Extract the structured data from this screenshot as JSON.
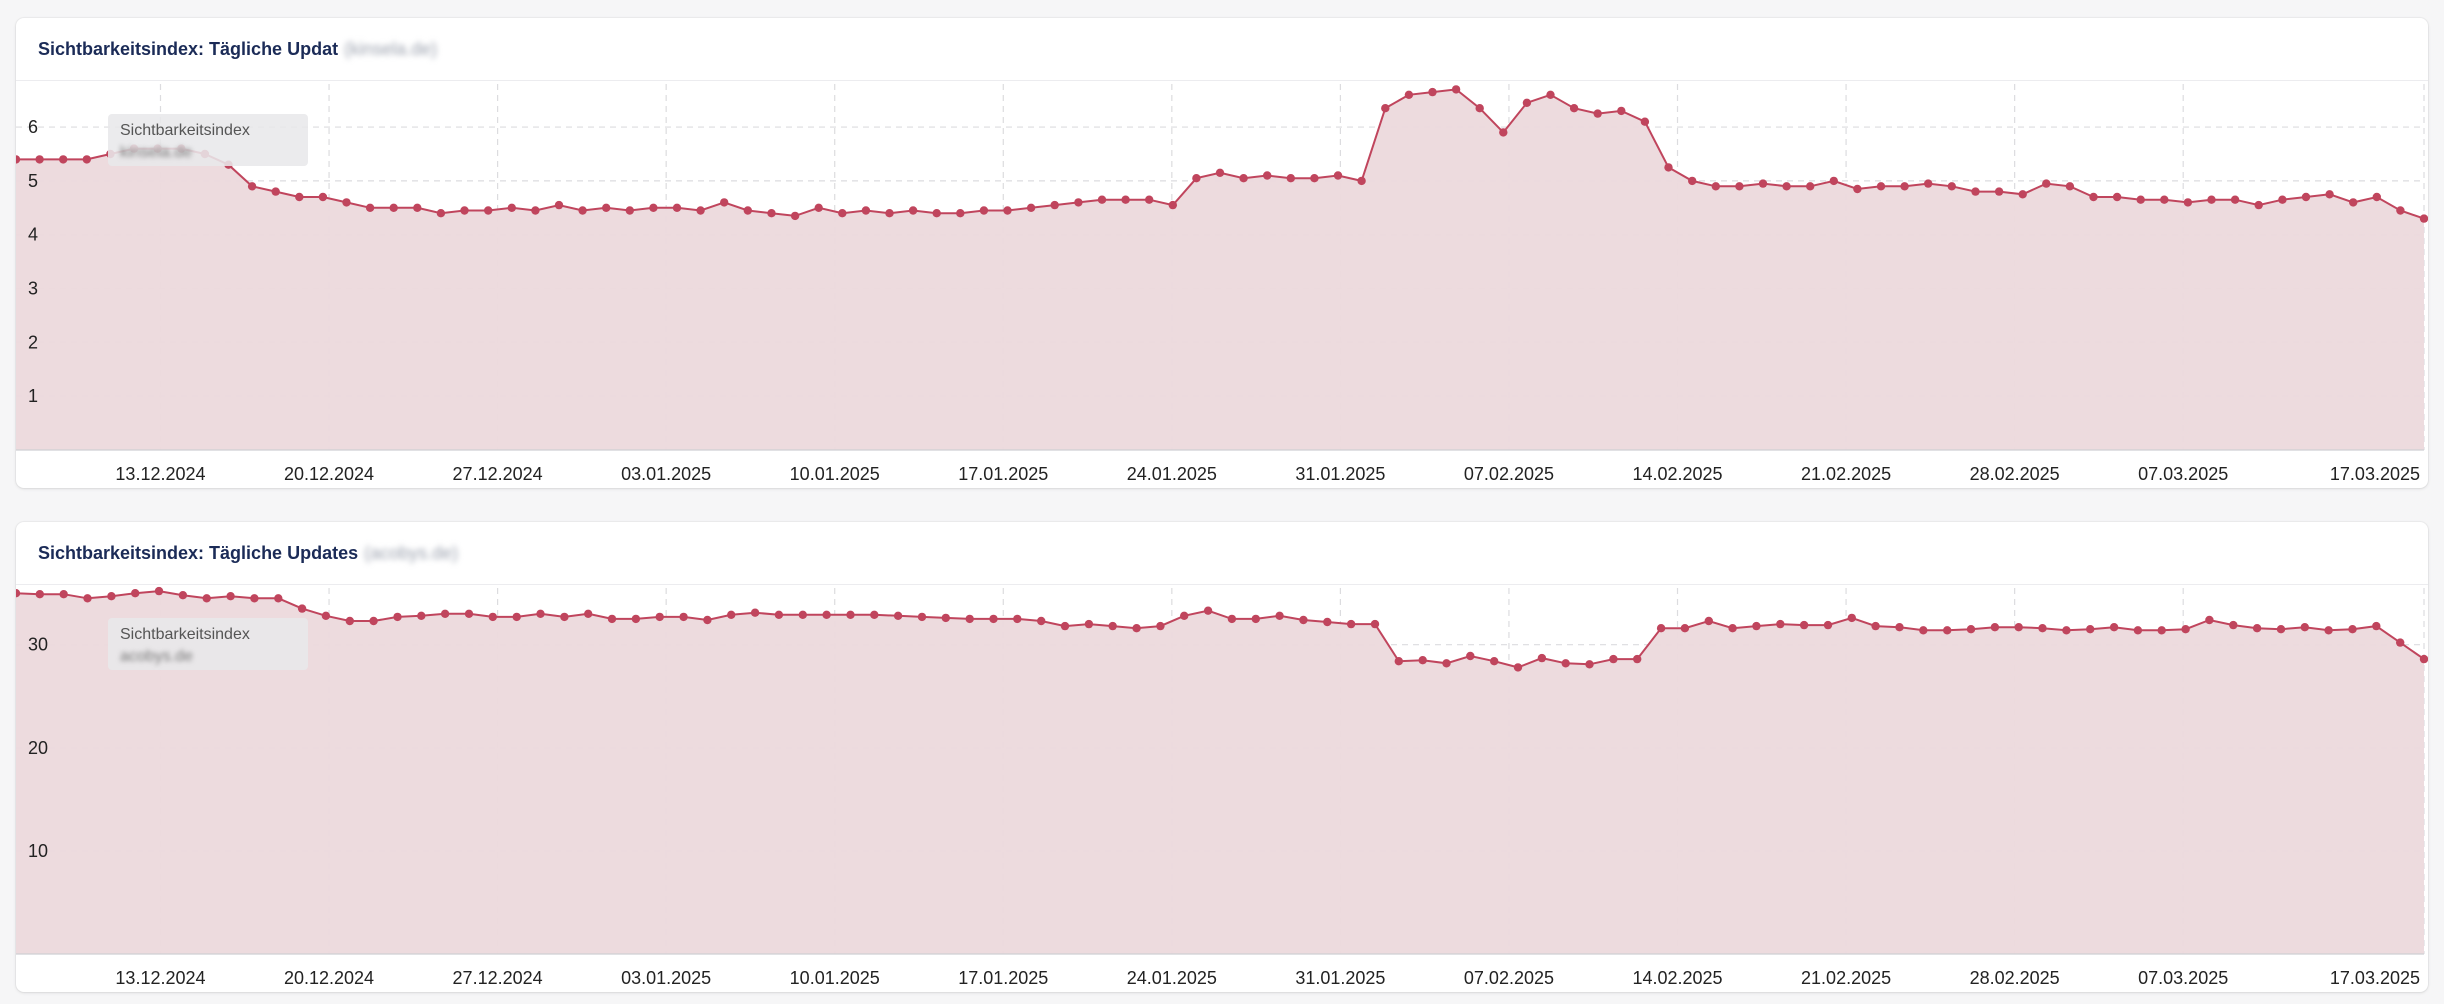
{
  "colors": {
    "accent": "#c0455d",
    "area_fill": "#ecd9dc",
    "title": "#1b2b57",
    "grid": "#dcdcdf"
  },
  "charts": [
    {
      "title": "Sichtbarkeitsindex: Tägliche Updat",
      "domain": "(kinsela.de)",
      "tooltip": {
        "series": "Sichtbarkeitsindex",
        "domain": "kinsela.de"
      }
    },
    {
      "title": "Sichtbarkeitsindex: Tägliche Updates",
      "domain": "(acobys.de)",
      "tooltip": {
        "series": "Sichtbarkeitsindex",
        "domain": "acobys.de"
      }
    }
  ],
  "chart_data": [
    {
      "type": "area",
      "x_ticks": [
        "13.12.2024",
        "20.12.2024",
        "27.12.2024",
        "03.01.2025",
        "10.01.2025",
        "17.01.2025",
        "24.01.2025",
        "31.01.2025",
        "07.02.2025",
        "14.02.2025",
        "21.02.2025",
        "28.02.2025",
        "07.03.2025",
        "17.03.2025"
      ],
      "x_start": "2024-12-07",
      "x_end": "2025-03-17",
      "y_ticks": [
        1,
        2,
        3,
        4,
        5,
        6
      ],
      "ylim": [
        0,
        6.8
      ],
      "grid": true,
      "series": [
        {
          "values": [
            5.4,
            5.4,
            5.4,
            5.4,
            5.5,
            5.6,
            5.6,
            5.6,
            5.5,
            5.3,
            4.9,
            4.8,
            4.7,
            4.7,
            4.6,
            4.5,
            4.5,
            4.5,
            4.4,
            4.45,
            4.45,
            4.5,
            4.45,
            4.55,
            4.45,
            4.5,
            4.45,
            4.5,
            4.5,
            4.45,
            4.6,
            4.45,
            4.4,
            4.35,
            4.5,
            4.4,
            4.45,
            4.4,
            4.45,
            4.4,
            4.4,
            4.45,
            4.45,
            4.5,
            4.55,
            4.6,
            4.65,
            4.65,
            4.65,
            4.55,
            5.05,
            5.15,
            5.05,
            5.1,
            5.05,
            5.05,
            5.1,
            5.0,
            6.35,
            6.6,
            6.65,
            6.7,
            6.35,
            5.9,
            6.45,
            6.6,
            6.35,
            6.25,
            6.3,
            6.1,
            5.25,
            5.0,
            4.9,
            4.9,
            4.95,
            4.9,
            4.9,
            5.0,
            4.85,
            4.9,
            4.9,
            4.95,
            4.9,
            4.8,
            4.8,
            4.75,
            4.95,
            4.9,
            4.7,
            4.7,
            4.65,
            4.65,
            4.6,
            4.65,
            4.65,
            4.55,
            4.65,
            4.7,
            4.75,
            4.6,
            4.7,
            4.45,
            4.3
          ]
        }
      ]
    },
    {
      "type": "area",
      "x_ticks": [
        "13.12.2024",
        "20.12.2024",
        "27.12.2024",
        "03.01.2025",
        "10.01.2025",
        "17.01.2025",
        "24.01.2025",
        "31.01.2025",
        "07.02.2025",
        "14.02.2025",
        "21.02.2025",
        "28.02.2025",
        "07.03.2025",
        "17.03.2025"
      ],
      "x_start": "2024-12-07",
      "x_end": "2025-03-17",
      "y_ticks": [
        10,
        20,
        30
      ],
      "ylim": [
        0,
        35.5
      ],
      "grid": true,
      "series": [
        {
          "values": [
            35.0,
            34.9,
            34.9,
            34.5,
            34.7,
            35.0,
            35.2,
            34.8,
            34.5,
            34.7,
            34.5,
            34.5,
            33.5,
            32.8,
            32.3,
            32.3,
            32.7,
            32.8,
            33.0,
            33.0,
            32.7,
            32.7,
            33.0,
            32.7,
            33.0,
            32.5,
            32.5,
            32.7,
            32.7,
            32.4,
            32.9,
            33.1,
            32.9,
            32.9,
            32.9,
            32.9,
            32.9,
            32.8,
            32.7,
            32.6,
            32.5,
            32.5,
            32.5,
            32.3,
            31.8,
            32.0,
            31.8,
            31.6,
            31.8,
            32.8,
            33.3,
            32.5,
            32.5,
            32.8,
            32.4,
            32.2,
            32.0,
            32.0,
            28.4,
            28.5,
            28.2,
            28.9,
            28.4,
            27.8,
            28.7,
            28.2,
            28.1,
            28.6,
            28.6,
            31.6,
            31.6,
            32.3,
            31.6,
            31.8,
            32.0,
            31.9,
            31.9,
            32.6,
            31.8,
            31.7,
            31.4,
            31.4,
            31.5,
            31.7,
            31.7,
            31.6,
            31.4,
            31.5,
            31.7,
            31.4,
            31.4,
            31.5,
            32.4,
            31.9,
            31.6,
            31.5,
            31.7,
            31.4,
            31.5,
            31.8,
            30.2,
            28.6
          ]
        }
      ]
    }
  ]
}
